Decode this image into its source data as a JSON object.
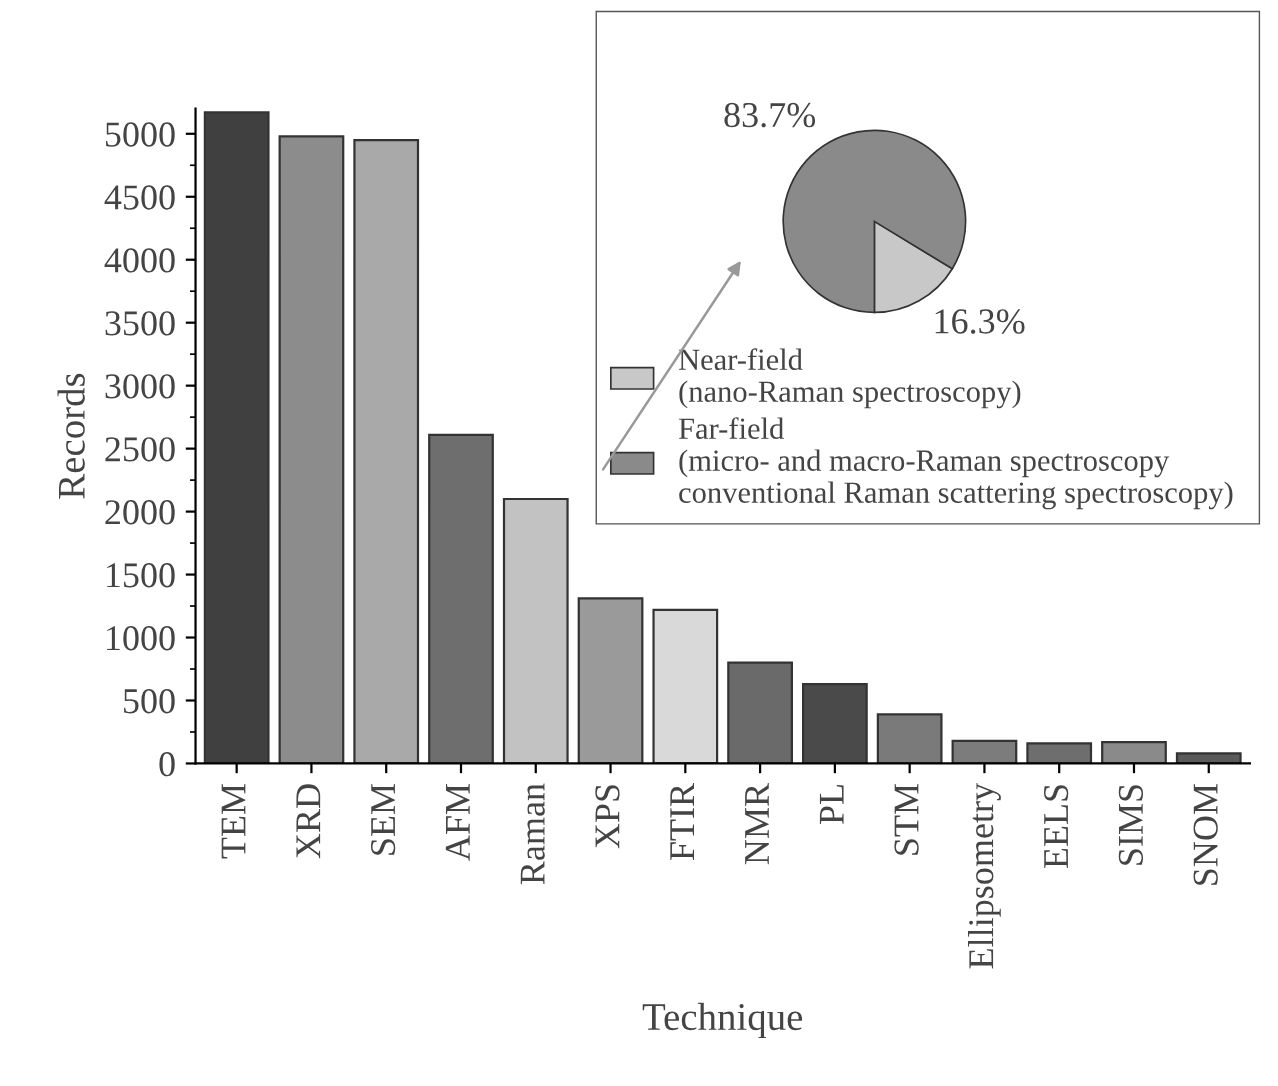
{
  "chart_data": [
    {
      "type": "bar",
      "xlabel": "Technique",
      "ylabel": "Records",
      "categories": [
        "TEM",
        "XRD",
        "SEM",
        "AFM",
        "Raman",
        "XPS",
        "FTIR",
        "NMR",
        "PL",
        "STM",
        "Ellipsometry",
        "EELS",
        "SIMS",
        "SNOM"
      ],
      "values": [
        5170,
        4980,
        4950,
        2610,
        2100,
        1310,
        1220,
        800,
        630,
        390,
        180,
        160,
        170,
        80
      ],
      "colors": [
        "#404040",
        "#8c8c8c",
        "#a9a9a9",
        "#6e6e6e",
        "#c2c2c2",
        "#9a9a9a",
        "#d9d9d9",
        "#6a6a6a",
        "#4a4a4a",
        "#7a7a7a",
        "#7c7c7c",
        "#6e6e6e",
        "#8a8a8a",
        "#5a5a5a"
      ],
      "ylim": [
        0,
        5200
      ],
      "yticks": [
        0,
        500,
        1000,
        1500,
        2000,
        2500,
        3000,
        3500,
        4000,
        4500,
        5000
      ]
    },
    {
      "type": "pie",
      "categories": [
        "Near-field\n(nano-Raman spectroscopy)",
        "Far-field\n(micro- and macro-Raman spectroscopy\nconventional Raman scattering spectroscopy)"
      ],
      "values": [
        16.3,
        83.7
      ],
      "value_labels": [
        "16.3%",
        "83.7%"
      ],
      "colors": [
        "#c8c8c8",
        "#8a8a8a"
      ],
      "legend": "bottom"
    }
  ]
}
